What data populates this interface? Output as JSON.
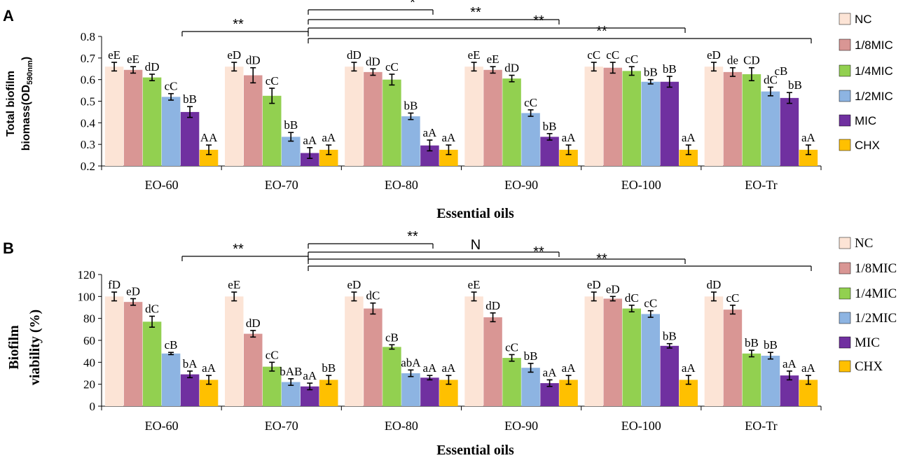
{
  "colors": {
    "NC": "#FCE4D6",
    "1/8MIC": "#D99694",
    "1/4MIC": "#92D050",
    "1/2MIC": "#8DB4E2",
    "MIC": "#7030A0",
    "CHX": "#FFC000"
  },
  "chart_data": [
    {
      "panel": "A",
      "type": "bar",
      "xlabel": "Essential oils",
      "ylabel_line1": "Total biofilm",
      "ylabel_line2": "biomass(OD",
      "ylabel_sub": "590nm",
      "ylabel_close": ")",
      "ylim": [
        0.2,
        0.8
      ],
      "yticks": [
        "0.2",
        "0.3",
        "0.4",
        "0.5",
        "0.6",
        "0.7",
        "0.8"
      ],
      "categories": [
        "EO-60",
        "EO-70",
        "EO-80",
        "EO-90",
        "EO-100",
        "EO-Tr"
      ],
      "series": [
        {
          "name": "NC",
          "values": [
            0.66,
            0.66,
            0.66,
            0.66,
            0.66,
            0.66
          ],
          "errors": [
            0.02,
            0.02,
            0.02,
            0.02,
            0.02,
            0.02
          ],
          "labels": [
            "eE",
            "eD",
            "dD",
            "eE",
            "cC",
            "eD"
          ]
        },
        {
          "name": "1/8MIC",
          "values": [
            0.645,
            0.62,
            0.635,
            0.645,
            0.655,
            0.635
          ],
          "errors": [
            0.015,
            0.035,
            0.015,
            0.015,
            0.025,
            0.02
          ],
          "labels": [
            "eE",
            "dD",
            "dD",
            "eE",
            "cC",
            "de"
          ]
        },
        {
          "name": "1/4MIC",
          "values": [
            0.61,
            0.525,
            0.6,
            0.605,
            0.64,
            0.625
          ],
          "errors": [
            0.015,
            0.035,
            0.025,
            0.015,
            0.02,
            0.03
          ],
          "labels": [
            "dD",
            "cC",
            "cC",
            "dD",
            "cC",
            "CD"
          ]
        },
        {
          "name": "1/2MIC",
          "values": [
            0.52,
            0.335,
            0.43,
            0.445,
            0.59,
            0.545
          ],
          "errors": [
            0.015,
            0.02,
            0.015,
            0.015,
            0.01,
            0.02
          ],
          "labels": [
            "cC",
            "bB",
            "bB",
            "cC",
            "bB",
            "dC"
          ]
        },
        {
          "name": "MIC",
          "values": [
            0.45,
            0.26,
            0.295,
            0.335,
            0.59,
            0.515
          ],
          "errors": [
            0.025,
            0.025,
            0.025,
            0.015,
            0.025,
            0.025
          ],
          "labels": [
            "bB",
            "aA",
            "aA",
            "bB",
            "bB",
            "cB"
          ]
        },
        {
          "name": "CHX",
          "values": [
            0.275,
            0.275,
            0.275,
            0.275,
            0.275,
            0.275
          ],
          "errors": [
            0.022,
            0.022,
            0.022,
            0.022,
            0.022,
            0.022
          ],
          "labels": [
            "AA",
            "aA",
            "aA",
            "aA",
            "aA",
            "aA"
          ]
        }
      ],
      "extra_labels": [
        {
          "category": "EO-Tr",
          "series": "MIC",
          "text": "bB"
        }
      ],
      "significance": [
        "**",
        "*",
        "**",
        "**",
        "**"
      ],
      "legend": [
        "NC",
        "1/8MIC",
        "1/4MIC",
        "1/2MIC",
        "MIC",
        "CHX"
      ]
    },
    {
      "panel": "B",
      "type": "bar",
      "xlabel": "Essential oils",
      "ylabel_line1": "Biofilm",
      "ylabel_line2": "viability (%)",
      "ylim": [
        0,
        120
      ],
      "yticks": [
        "0",
        "20",
        "40",
        "60",
        "80",
        "100",
        "120"
      ],
      "categories": [
        "EO-60",
        "EO-70",
        "EO-80",
        "EO-90",
        "EO-100",
        "EO-Tr"
      ],
      "series": [
        {
          "name": "NC",
          "values": [
            100,
            100,
            100,
            100,
            100,
            100
          ],
          "errors": [
            4,
            4,
            4,
            4,
            4,
            4
          ],
          "labels": [
            "fD",
            "eE",
            "eD",
            "eE",
            "eD",
            "dD"
          ]
        },
        {
          "name": "1/8MIC",
          "values": [
            95,
            66,
            89,
            81,
            98,
            88
          ],
          "errors": [
            3,
            3,
            5,
            4,
            2,
            4
          ],
          "labels": [
            "eD",
            "dD",
            "dC",
            "dD",
            "eD",
            "cC"
          ]
        },
        {
          "name": "1/4MIC",
          "values": [
            77,
            36,
            54,
            44,
            89,
            48
          ],
          "errors": [
            5,
            4,
            2,
            3,
            3,
            3
          ],
          "labels": [
            "dC",
            "cC",
            "cB",
            "cC",
            "dC",
            "bB"
          ]
        },
        {
          "name": "1/2MIC",
          "values": [
            48,
            22,
            30,
            35,
            84,
            46
          ],
          "errors": [
            1,
            3,
            3,
            4,
            3,
            3
          ],
          "labels": [
            "cB",
            "bAB",
            "abA",
            "bB",
            "cC",
            "bB"
          ]
        },
        {
          "name": "MIC",
          "values": [
            29,
            18,
            26,
            21,
            55,
            28
          ],
          "errors": [
            3,
            3,
            2,
            3,
            2,
            4
          ],
          "labels": [
            "bA",
            "aA",
            "aA",
            "aA",
            "bB",
            "aA"
          ]
        },
        {
          "name": "CHX",
          "values": [
            24,
            24,
            24,
            24,
            24,
            24
          ],
          "errors": [
            4,
            4,
            4,
            4,
            4,
            4
          ],
          "labels": [
            "aA",
            "bB",
            "aA",
            "aA",
            "aA",
            "aA"
          ]
        }
      ],
      "significance": [
        "**",
        "**",
        "N",
        "**",
        "**"
      ],
      "legend": [
        "NC",
        "1/8MIC",
        "1/4MIC",
        "1/2MIC",
        "MIC",
        "CHX"
      ]
    }
  ]
}
